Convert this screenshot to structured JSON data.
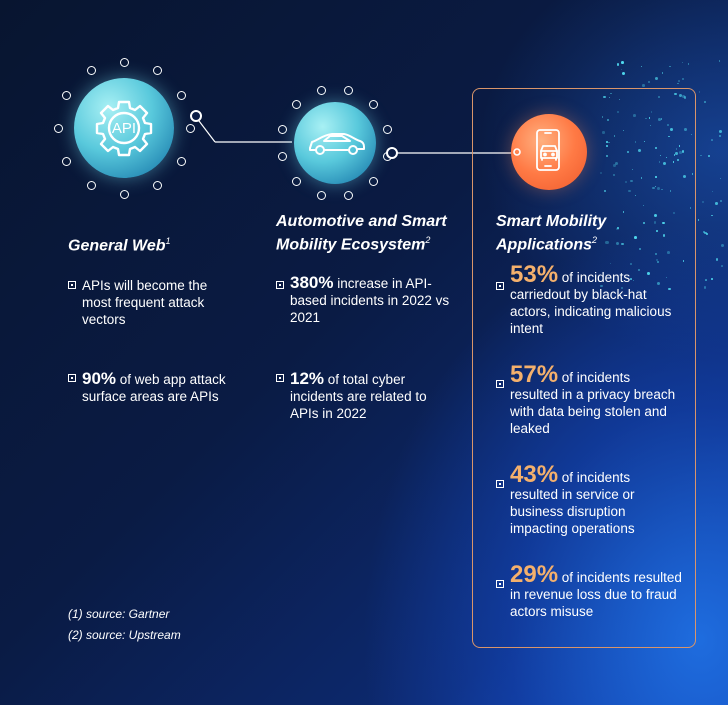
{
  "colors": {
    "accent_orange": "#f4b06c",
    "box_border": "#d9956a",
    "icon_cyan": "#59c9dc",
    "icon_orange": "#ff7a45"
  },
  "icons": {
    "general_web": "api-gear-icon",
    "automotive": "car-icon",
    "smart_mobility": "phone-car-icon"
  },
  "columns": [
    {
      "title": "General Web",
      "sup": "1",
      "bullets": [
        {
          "stat": "",
          "text": "APIs will become the most frequent attack vectors"
        },
        {
          "stat": "90%",
          "text": " of web app attack surface areas are APIs"
        }
      ]
    },
    {
      "title_line1": "Automotive and Smart",
      "title_line2": "Mobility Ecosystem",
      "sup": "2",
      "bullets": [
        {
          "stat": "380%",
          "text": " increase in API- based incidents in 2022 vs 2021"
        },
        {
          "stat": "12%",
          "text": " of total cyber incidents are related to APIs in 2022"
        }
      ]
    },
    {
      "title_line1": "Smart Mobility",
      "title_line2": "Applications",
      "sup": "2",
      "bullets": [
        {
          "stat": "53%",
          "text": " of incidents carriedout by black-hat actors, indicating malicious intent"
        },
        {
          "stat": "57%",
          "text": " of incidents resulted in a privacy breach with data being stolen and leaked"
        },
        {
          "stat": "43%",
          "text": " of incidents resulted in service or business disruption impacting operations"
        },
        {
          "stat": "29%",
          "text": " of incidents resulted in revenue loss due to fraud actors misuse"
        }
      ]
    }
  ],
  "sources": [
    "(1) source: Gartner",
    "(2) source: Upstream"
  ]
}
